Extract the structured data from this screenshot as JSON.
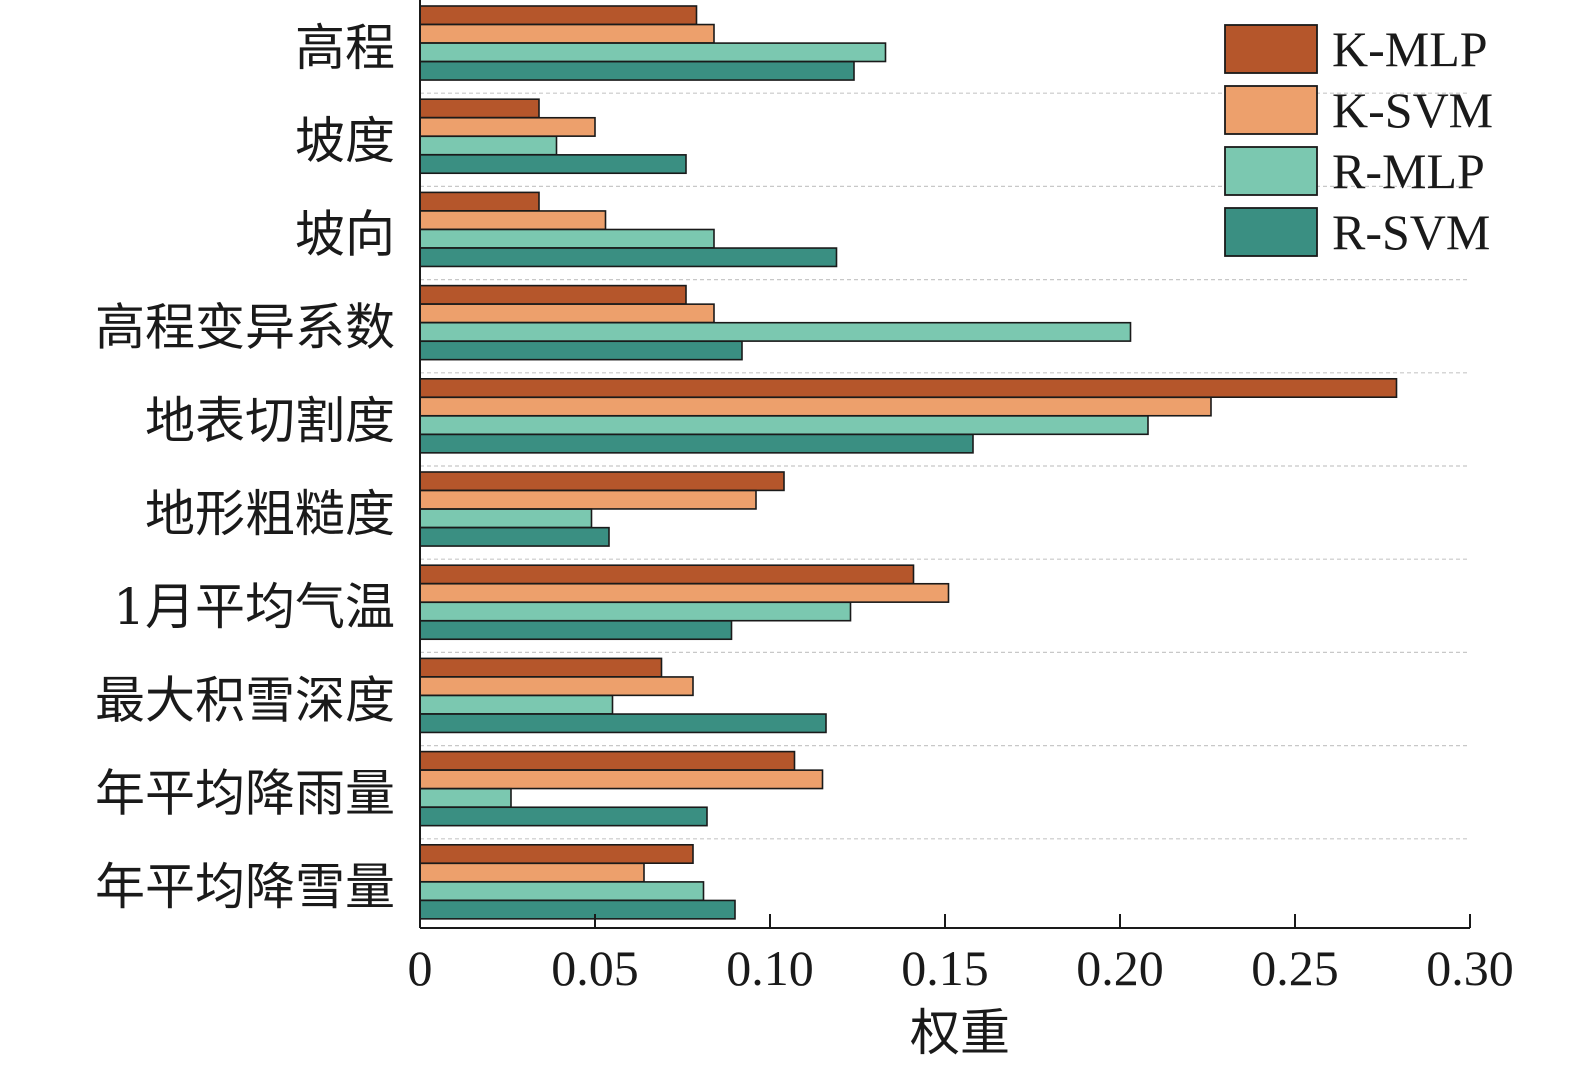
{
  "chart_data": {
    "type": "bar",
    "orientation": "horizontal",
    "categories": [
      "高程",
      "坡度",
      "坡向",
      "高程变异系数",
      "地表切割度",
      "地形粗糙度",
      "1月平均气温",
      "最大积雪深度",
      "年平均降雨量",
      "年平均降雪量"
    ],
    "series": [
      {
        "name": "K-MLP",
        "color": "#b5562b",
        "values": [
          0.079,
          0.034,
          0.034,
          0.076,
          0.279,
          0.104,
          0.141,
          0.069,
          0.107,
          0.078
        ]
      },
      {
        "name": "K-SVM",
        "color": "#eda06c",
        "values": [
          0.084,
          0.05,
          0.053,
          0.084,
          0.226,
          0.096,
          0.151,
          0.078,
          0.115,
          0.064
        ]
      },
      {
        "name": "R-MLP",
        "color": "#7bc8b0",
        "values": [
          0.133,
          0.039,
          0.084,
          0.203,
          0.208,
          0.049,
          0.123,
          0.055,
          0.026,
          0.081
        ]
      },
      {
        "name": "R-SVM",
        "color": "#3a8f82",
        "values": [
          0.124,
          0.076,
          0.119,
          0.092,
          0.158,
          0.054,
          0.089,
          0.116,
          0.082,
          0.09
        ]
      }
    ],
    "xlim": [
      0,
      0.3
    ],
    "xticks": [
      "0",
      "0.05",
      "0.10",
      "0.15",
      "0.20",
      "0.25",
      "0.30"
    ],
    "xlabel": "权重",
    "ylabel": "",
    "grid": "horizontal dashed separators",
    "legend_position": "top-right"
  }
}
